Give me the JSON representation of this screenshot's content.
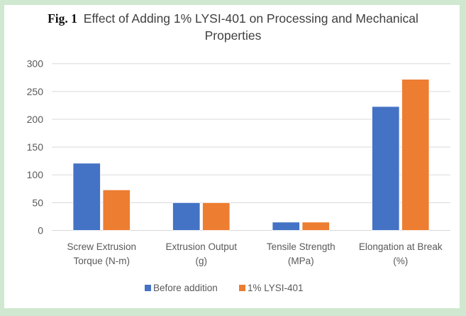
{
  "chart_data": {
    "type": "bar",
    "title_prefix": "Fig. 1",
    "title_line1": "Effect of Adding 1% LYSI-401 on Processing and Mechanical",
    "title_line2": "Properties",
    "categories": [
      [
        "Screw Extrusion",
        "Torque (N-m)"
      ],
      [
        "Extrusion Output",
        "(g)"
      ],
      [
        "Tensile Strength",
        "(MPa)"
      ],
      [
        "Elongation at Break",
        "(%)"
      ]
    ],
    "series": [
      {
        "name": "Before addition",
        "color": "#4472c4",
        "values": [
          121,
          50,
          15,
          223
        ]
      },
      {
        "name": "1% LYSI-401",
        "color": "#ed7d31",
        "values": [
          73,
          50,
          15,
          272
        ]
      }
    ],
    "ylim": [
      0,
      300
    ],
    "yticks": [
      0,
      50,
      100,
      150,
      200,
      250,
      300
    ],
    "xlabel": "",
    "ylabel": "",
    "grid": true,
    "legend": "bottom"
  }
}
